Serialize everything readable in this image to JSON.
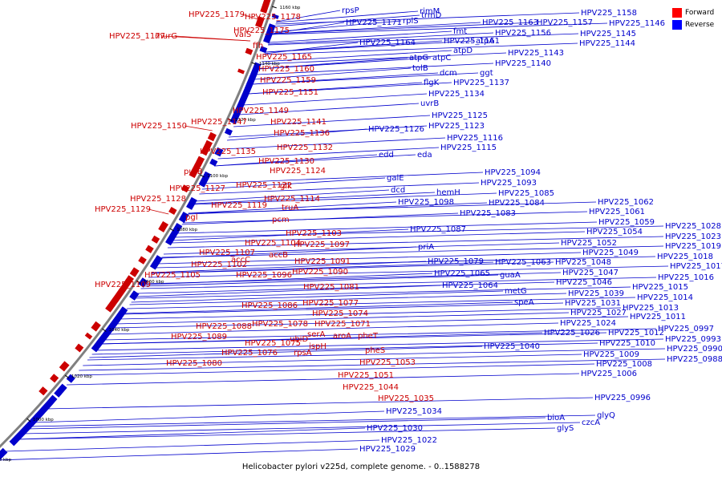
{
  "caption": "Helicobacter pylori v225d, complete genome. - 0..1588278",
  "legend": [
    {
      "label": "Forward",
      "color": "#ff0000"
    },
    {
      "label": "Reverse",
      "color": "#0000ff"
    }
  ],
  "colors": {
    "forward": "#cc0000",
    "reverse": "#0000cc",
    "backbone": "#808080"
  },
  "ticks": [
    "1160 kbp",
    "1140 kbp",
    "1120 kbp",
    "1100 kbp",
    "1080 kbp",
    "1060 kbp",
    "1040 kbp",
    "1020 kbp",
    "1000 kbp",
    "980 kbp"
  ],
  "forward_labels": [
    "HPV225_1179",
    "HPV225_1178",
    "HPV225_1175",
    "HPV225_1177",
    "murG",
    "valS",
    "ffh",
    "HPV225_1165",
    "HPV225_1160",
    "HPV225_1159",
    "HPV225_1151",
    "HPV225_1149",
    "HPV225_1150",
    "HPV225_1147",
    "HPV225_1141",
    "HPV225_1136",
    "HPV225_1135",
    "HPV225_1132",
    "HPV225_1130",
    "purB",
    "HPV225_1124",
    "HPV225_1127",
    "HPV225_1122",
    "glk",
    "HPV225_1128",
    "HPV225_1129",
    "HPV225_1119",
    "pgl",
    "HPV225_1114",
    "truA",
    "pcm",
    "HPV225_1103",
    "HPV225_1104",
    "HPV225_1097",
    "HPV225_1107",
    "accB",
    "accC",
    "HPV225_1102",
    "HPV225_1105",
    "HPV225_1096",
    "HPV225_1091",
    "HPV225_1090",
    "HPV225_1109",
    "HPV225_1081",
    "HPV225_1086",
    "HPV225_1077",
    "HPV225_1074",
    "HPV225_1088",
    "HPV225_1078",
    "HPV225_1071",
    "HPV225_1089",
    "serA",
    "aroA",
    "pheT",
    "HPV225_1075",
    "ubiD",
    "HPV225_1076",
    "ispH",
    "rpsA",
    "pheS",
    "HPV225_1080",
    "HPV225_1053",
    "HPV225_1051",
    "HPV225_1044",
    "HPV225_1035"
  ],
  "reverse_labels": [
    "rpsP",
    "rimM",
    "HPV225_1171",
    "rplS",
    "trmD",
    "HPV225_1158",
    "HPV225_1163",
    "HPV225_1157",
    "HPV225_1146",
    "fmt",
    "HPV225_1156",
    "HPV225_1145",
    "HPV225_1164",
    "HPV225_1161",
    "atpA",
    "HPV225_1144",
    "atpD",
    "HPV225_1143",
    "atpG",
    "atpC",
    "HPV225_1140",
    "tolB",
    "dcm",
    "ggt",
    "flgK",
    "HPV225_1137",
    "HPV225_1134",
    "uvrB",
    "HPV225_1125",
    "HPV225_1123",
    "HPV225_1126",
    "HPV225_1116",
    "HPV225_1115",
    "edd",
    "eda",
    "HPV225_1094",
    "galE",
    "HPV225_1093",
    "dcd",
    "hemH",
    "HPV225_1085",
    "HPV225_1098",
    "HPV225_1084",
    "HPV225_1083",
    "HPV225_1087",
    "HPV225_1062",
    "HPV225_1061",
    "HPV225_1059",
    "HPV225_1054",
    "HPV225_1028",
    "HPV225_1023",
    "HPV225_1052",
    "priA",
    "HPV225_1049",
    "HPV225_1019",
    "HPV225_1079",
    "HPV225_1063",
    "HPV225_1048",
    "HPV225_1018",
    "HPV225_1017",
    "HPV225_1065",
    "guaA",
    "HPV225_1047",
    "HPV225_1016",
    "HPV225_1064",
    "HPV225_1046",
    "HPV225_1015",
    "metG",
    "HPV225_1039",
    "HPV225_1014",
    "speA",
    "HPV225_1031",
    "HPV225_1013",
    "HPV225_1027",
    "HPV225_1011",
    "HPV225_1024",
    "HPV225_1026",
    "HPV225_1012",
    "HPV225_0997",
    "HPV225_1010",
    "HPV225_0993",
    "HPV225_1040",
    "HPV225_1009",
    "HPV225_0990",
    "HPV225_1008",
    "HPV225_0988",
    "HPV225_1006",
    "HPV225_1034",
    "HPV225_0996",
    "bioA",
    "HPV225_1030",
    "glyS",
    "czcA",
    "glyQ",
    "HPV225_1022",
    "HPV225_1029"
  ]
}
